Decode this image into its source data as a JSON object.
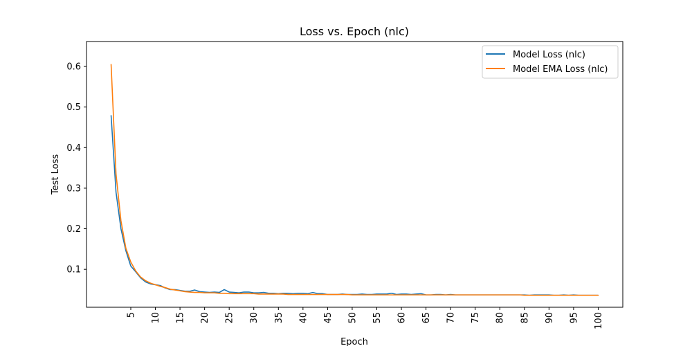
{
  "chart_data": {
    "type": "line",
    "title": "Loss vs. Epoch (nlc)",
    "xlabel": "Epoch",
    "ylabel": "Test Loss",
    "xlim": [
      -4,
      105
    ],
    "ylim": [
      0.0065,
      0.6615
    ],
    "x_ticks": [
      5,
      10,
      15,
      20,
      25,
      30,
      35,
      40,
      45,
      50,
      55,
      60,
      65,
      70,
      75,
      80,
      85,
      90,
      95,
      100
    ],
    "y_ticks": [
      0.1,
      0.2,
      0.3,
      0.4,
      0.5,
      0.6
    ],
    "y_tick_labels": [
      "0.1",
      "0.2",
      "0.3",
      "0.4",
      "0.5",
      "0.6"
    ],
    "grid": false,
    "legend_position": "top-right",
    "x": [
      1,
      2,
      3,
      4,
      5,
      6,
      7,
      8,
      9,
      10,
      11,
      12,
      13,
      14,
      15,
      16,
      17,
      18,
      19,
      20,
      21,
      22,
      23,
      24,
      25,
      26,
      27,
      28,
      29,
      30,
      31,
      32,
      33,
      34,
      35,
      36,
      37,
      38,
      39,
      40,
      41,
      42,
      43,
      44,
      45,
      46,
      47,
      48,
      49,
      50,
      51,
      52,
      53,
      54,
      55,
      56,
      57,
      58,
      59,
      60,
      61,
      62,
      63,
      64,
      65,
      66,
      67,
      68,
      69,
      70,
      71,
      72,
      73,
      74,
      75,
      76,
      77,
      78,
      79,
      80,
      81,
      82,
      83,
      84,
      85,
      86,
      87,
      88,
      89,
      90,
      91,
      92,
      93,
      94,
      95,
      96,
      97,
      98,
      99,
      100
    ],
    "series": [
      {
        "name": "Model Loss (nlc)",
        "color": "#1f77b4",
        "values": [
          0.479,
          0.29,
          0.2,
          0.146,
          0.108,
          0.094,
          0.079,
          0.069,
          0.064,
          0.062,
          0.06,
          0.054,
          0.05,
          0.05,
          0.048,
          0.046,
          0.046,
          0.049,
          0.045,
          0.044,
          0.043,
          0.044,
          0.043,
          0.05,
          0.044,
          0.043,
          0.042,
          0.044,
          0.044,
          0.042,
          0.042,
          0.043,
          0.041,
          0.041,
          0.04,
          0.041,
          0.041,
          0.04,
          0.041,
          0.041,
          0.04,
          0.043,
          0.04,
          0.04,
          0.038,
          0.038,
          0.038,
          0.039,
          0.038,
          0.038,
          0.038,
          0.039,
          0.038,
          0.038,
          0.039,
          0.039,
          0.039,
          0.041,
          0.038,
          0.039,
          0.039,
          0.038,
          0.039,
          0.04,
          0.037,
          0.037,
          0.038,
          0.038,
          0.037,
          0.038,
          0.037,
          0.037,
          0.037,
          0.037,
          0.037,
          0.037,
          0.037,
          0.037,
          0.037,
          0.037,
          0.037,
          0.037,
          0.037,
          0.037,
          0.037,
          0.036,
          0.037,
          0.037,
          0.037,
          0.037,
          0.036,
          0.036,
          0.037,
          0.036,
          0.037,
          0.036,
          0.036,
          0.036,
          0.036,
          0.036
        ]
      },
      {
        "name": "Model EMA Loss (nlc)",
        "color": "#ff7f0e",
        "values": [
          0.605,
          0.335,
          0.22,
          0.152,
          0.118,
          0.096,
          0.081,
          0.072,
          0.066,
          0.062,
          0.058,
          0.055,
          0.051,
          0.049,
          0.047,
          0.045,
          0.044,
          0.043,
          0.043,
          0.042,
          0.042,
          0.042,
          0.041,
          0.041,
          0.04,
          0.04,
          0.04,
          0.04,
          0.04,
          0.04,
          0.039,
          0.039,
          0.039,
          0.039,
          0.039,
          0.039,
          0.038,
          0.038,
          0.038,
          0.038,
          0.038,
          0.038,
          0.038,
          0.038,
          0.038,
          0.038,
          0.038,
          0.038,
          0.038,
          0.037,
          0.037,
          0.037,
          0.037,
          0.037,
          0.037,
          0.037,
          0.037,
          0.037,
          0.037,
          0.037,
          0.037,
          0.037,
          0.037,
          0.037,
          0.037,
          0.037,
          0.037,
          0.037,
          0.037,
          0.037,
          0.037,
          0.037,
          0.037,
          0.037,
          0.037,
          0.037,
          0.037,
          0.037,
          0.037,
          0.037,
          0.037,
          0.037,
          0.037,
          0.037,
          0.036,
          0.036,
          0.036,
          0.036,
          0.036,
          0.036,
          0.036,
          0.036,
          0.036,
          0.036,
          0.036,
          0.036,
          0.036,
          0.036,
          0.036,
          0.036
        ]
      }
    ]
  }
}
